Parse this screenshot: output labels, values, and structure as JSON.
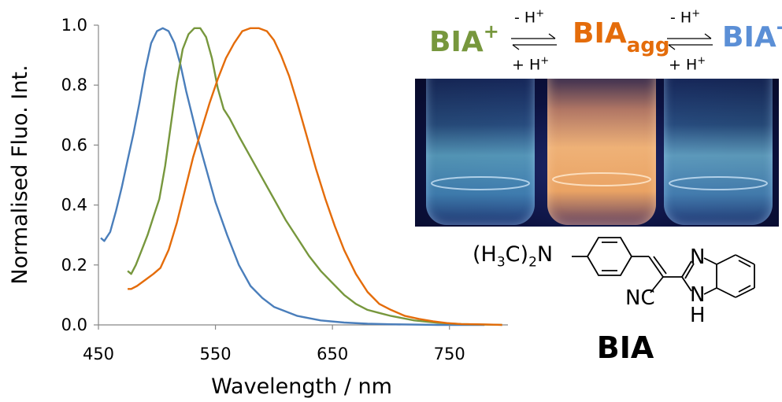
{
  "chart_data": {
    "type": "line",
    "xlabel": "Wavelength / nm",
    "ylabel": "Normalised Fluo. Int.",
    "xlim": [
      450,
      800
    ],
    "ylim": [
      0,
      1.0
    ],
    "xticks": [
      "450",
      "550",
      "650",
      "750"
    ],
    "yticks": [
      "0.0",
      "0.2",
      "0.4",
      "0.6",
      "0.8",
      "1.0"
    ],
    "grid": false,
    "series": [
      {
        "color": "#4a7ebb",
        "x": [
          452,
          455,
          460,
          465,
          470,
          475,
          480,
          485,
          490,
          495,
          500,
          505,
          510,
          515,
          520,
          525,
          530,
          535,
          540,
          545,
          550,
          560,
          570,
          580,
          590,
          600,
          620,
          640,
          660,
          680,
          700,
          720,
          740,
          760,
          780
        ],
        "y": [
          0.29,
          0.28,
          0.31,
          0.38,
          0.46,
          0.55,
          0.64,
          0.74,
          0.85,
          0.94,
          0.98,
          0.99,
          0.98,
          0.94,
          0.87,
          0.78,
          0.7,
          0.62,
          0.55,
          0.48,
          0.41,
          0.3,
          0.2,
          0.13,
          0.09,
          0.06,
          0.03,
          0.015,
          0.008,
          0.004,
          0.002,
          0.001,
          0.0,
          0.0,
          0.0
        ]
      },
      {
        "color": "#77973d",
        "x": [
          475,
          478,
          482,
          487,
          492,
          497,
          502,
          507,
          512,
          517,
          522,
          527,
          532,
          537,
          542,
          547,
          552,
          557,
          562,
          570,
          580,
          590,
          600,
          610,
          620,
          630,
          640,
          650,
          660,
          670,
          680,
          690,
          700,
          720,
          740,
          760,
          780,
          795
        ],
        "y": [
          0.18,
          0.17,
          0.2,
          0.25,
          0.3,
          0.36,
          0.42,
          0.53,
          0.67,
          0.81,
          0.92,
          0.97,
          0.99,
          0.99,
          0.96,
          0.89,
          0.79,
          0.72,
          0.69,
          0.63,
          0.56,
          0.49,
          0.42,
          0.35,
          0.29,
          0.23,
          0.18,
          0.14,
          0.1,
          0.07,
          0.05,
          0.04,
          0.03,
          0.015,
          0.007,
          0.003,
          0.001,
          0.0
        ]
      },
      {
        "color": "#e46c0a",
        "x": [
          475,
          478,
          483,
          490,
          497,
          503,
          510,
          517,
          524,
          531,
          538,
          545,
          552,
          559,
          566,
          573,
          580,
          587,
          594,
          600,
          606,
          613,
          620,
          628,
          636,
          644,
          652,
          660,
          670,
          680,
          690,
          700,
          712,
          724,
          736,
          748,
          760,
          772,
          785,
          795
        ],
        "y": [
          0.12,
          0.12,
          0.13,
          0.15,
          0.17,
          0.19,
          0.25,
          0.34,
          0.45,
          0.56,
          0.65,
          0.74,
          0.82,
          0.89,
          0.94,
          0.98,
          0.99,
          0.99,
          0.98,
          0.95,
          0.9,
          0.83,
          0.74,
          0.63,
          0.52,
          0.42,
          0.33,
          0.25,
          0.17,
          0.11,
          0.07,
          0.05,
          0.03,
          0.02,
          0.012,
          0.006,
          0.003,
          0.002,
          0.001,
          0.0
        ]
      }
    ]
  },
  "scheme": {
    "species_cation_base": "BIA",
    "species_cation_charge": "+",
    "species_agg_base": "BIA",
    "species_agg_sub": "agg",
    "species_anion_base": "BIA",
    "species_anion_charge": "-",
    "arrow1_top": "- H",
    "arrow1_top_sup": "+",
    "arrow1_bottom": "+ H",
    "arrow1_bottom_sup": "+",
    "arrow2_top": "- H",
    "arrow2_top_sup": "+",
    "arrow2_bottom": "+ H",
    "arrow2_bottom_sup": "+",
    "colors": {
      "cation": "#77973d",
      "agg": "#e46c0a",
      "anion": "#5b8fd6"
    }
  },
  "structure": {
    "amine_prefix": "(H",
    "amine_sub1": "3",
    "amine_mid": "C)",
    "amine_sub2": "2",
    "amine_suffix": "N",
    "nitrile": "NC",
    "ring_n": "N",
    "ring_nh": "N",
    "ring_h": "H",
    "name": "BIA"
  },
  "photo": {
    "vials": [
      {
        "glow": "#6fb7d4"
      },
      {
        "glow": "#f6b16a"
      },
      {
        "glow": "#78b9d6"
      }
    ]
  }
}
